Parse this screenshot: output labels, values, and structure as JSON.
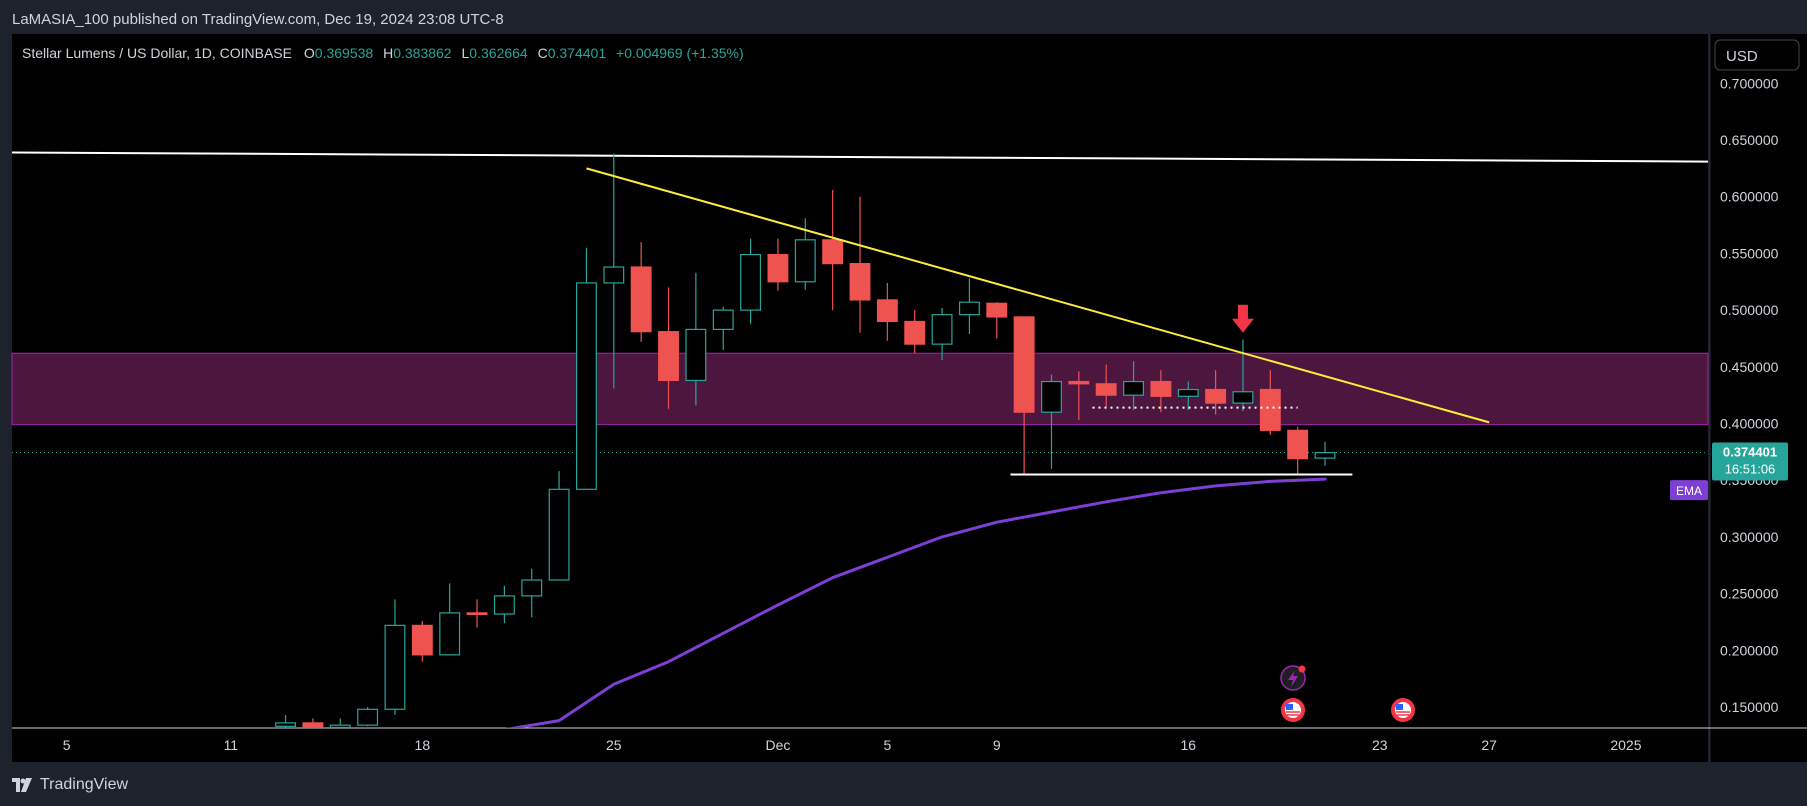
{
  "header": {
    "published": "LaMASIA_100 published on TradingView.com, Dec 19, 2024 23:08 UTC-8"
  },
  "legend": {
    "symbol": "Stellar Lumens / US Dollar, 1D, COINBASE",
    "o_label": "O",
    "o_value": "0.369538",
    "h_label": "H",
    "h_value": "0.383862",
    "l_label": "L",
    "l_value": "0.362664",
    "c_label": "C",
    "c_value": "0.374401",
    "change": "+0.004969 (+1.35%)"
  },
  "currency_button": "USD",
  "price_label": {
    "price": "0.374401",
    "countdown": "16:51:06"
  },
  "ema_label": "EMA",
  "footer": {
    "brand": "TradingView"
  },
  "colors": {
    "background": "#000000",
    "up": "#26a69a",
    "down": "#ef5350",
    "resistance_line": "#ffffff",
    "trend_line": "#ffeb3b",
    "ema": "#7e3fd6",
    "zone": "#5a1a4a",
    "dotted_line": "#26a69a"
  },
  "icons": [
    "lightning-event-icon",
    "us-flag-event-icon",
    "us-flag-event-icon",
    "tradingview-logo-icon",
    "down-arrow-icon"
  ],
  "chart_data": {
    "type": "candlestick",
    "title": "Stellar Lumens / US Dollar, 1D, COINBASE",
    "xlabel": "",
    "ylabel": "",
    "ylim": [
      0.1315,
      0.7435
    ],
    "y_ticks": [
      "0.150000",
      "0.200000",
      "0.250000",
      "0.300000",
      "0.350000",
      "0.400000",
      "0.450000",
      "0.500000",
      "0.550000",
      "0.600000",
      "0.650000",
      "0.700000"
    ],
    "y_tick_values": [
      0.15,
      0.2,
      0.25,
      0.3,
      0.35,
      0.4,
      0.45,
      0.5,
      0.55,
      0.6,
      0.65,
      0.7
    ],
    "x_ticks": [
      {
        "label": "5",
        "date": "2024-11-05"
      },
      {
        "label": "11",
        "date": "2024-11-11"
      },
      {
        "label": "18",
        "date": "2024-11-18"
      },
      {
        "label": "25",
        "date": "2024-11-25"
      },
      {
        "label": "Dec",
        "date": "2024-12-01"
      },
      {
        "label": "5",
        "date": "2024-12-05"
      },
      {
        "label": "9",
        "date": "2024-12-09"
      },
      {
        "label": "16",
        "date": "2024-12-16"
      },
      {
        "label": "23",
        "date": "2024-12-23"
      },
      {
        "label": "27",
        "date": "2024-12-27"
      },
      {
        "label": "2025",
        "date": "2025-01-01"
      }
    ],
    "x_range": [
      "2024-11-03",
      "2025-01-04"
    ],
    "candles": [
      {
        "date": "2024-11-13",
        "o": 0.133,
        "h": 0.143,
        "l": 0.13,
        "c": 0.136
      },
      {
        "date": "2024-11-14",
        "o": 0.136,
        "h": 0.14,
        "l": 0.128,
        "c": 0.132
      },
      {
        "date": "2024-11-15",
        "o": 0.132,
        "h": 0.14,
        "l": 0.129,
        "c": 0.134
      },
      {
        "date": "2024-11-16",
        "o": 0.134,
        "h": 0.15,
        "l": 0.133,
        "c": 0.148
      },
      {
        "date": "2024-11-17",
        "o": 0.148,
        "h": 0.245,
        "l": 0.143,
        "c": 0.222
      },
      {
        "date": "2024-11-18",
        "o": 0.222,
        "h": 0.226,
        "l": 0.19,
        "c": 0.196
      },
      {
        "date": "2024-11-19",
        "o": 0.196,
        "h": 0.259,
        "l": 0.196,
        "c": 0.233
      },
      {
        "date": "2024-11-20",
        "o": 0.233,
        "h": 0.245,
        "l": 0.22,
        "c": 0.232
      },
      {
        "date": "2024-11-21",
        "o": 0.232,
        "h": 0.257,
        "l": 0.224,
        "c": 0.248
      },
      {
        "date": "2024-11-22",
        "o": 0.248,
        "h": 0.272,
        "l": 0.229,
        "c": 0.262
      },
      {
        "date": "2024-11-23",
        "o": 0.262,
        "h": 0.358,
        "l": 0.262,
        "c": 0.342
      },
      {
        "date": "2024-11-24",
        "o": 0.342,
        "h": 0.555,
        "l": 0.342,
        "c": 0.524
      },
      {
        "date": "2024-11-25",
        "o": 0.524,
        "h": 0.638,
        "l": 0.431,
        "c": 0.538
      },
      {
        "date": "2024-11-26",
        "o": 0.538,
        "h": 0.56,
        "l": 0.472,
        "c": 0.481
      },
      {
        "date": "2024-11-27",
        "o": 0.481,
        "h": 0.52,
        "l": 0.413,
        "c": 0.438
      },
      {
        "date": "2024-11-28",
        "o": 0.438,
        "h": 0.533,
        "l": 0.416,
        "c": 0.483
      },
      {
        "date": "2024-11-29",
        "o": 0.483,
        "h": 0.503,
        "l": 0.465,
        "c": 0.5
      },
      {
        "date": "2024-11-30",
        "o": 0.5,
        "h": 0.563,
        "l": 0.488,
        "c": 0.549
      },
      {
        "date": "2024-12-01",
        "o": 0.549,
        "h": 0.563,
        "l": 0.517,
        "c": 0.525
      },
      {
        "date": "2024-12-02",
        "o": 0.525,
        "h": 0.581,
        "l": 0.518,
        "c": 0.562
      },
      {
        "date": "2024-12-03",
        "o": 0.562,
        "h": 0.606,
        "l": 0.5,
        "c": 0.541
      },
      {
        "date": "2024-12-04",
        "o": 0.541,
        "h": 0.6,
        "l": 0.48,
        "c": 0.509
      },
      {
        "date": "2024-12-05",
        "o": 0.509,
        "h": 0.524,
        "l": 0.473,
        "c": 0.49
      },
      {
        "date": "2024-12-06",
        "o": 0.49,
        "h": 0.5,
        "l": 0.462,
        "c": 0.47
      },
      {
        "date": "2024-12-07",
        "o": 0.47,
        "h": 0.502,
        "l": 0.456,
        "c": 0.496
      },
      {
        "date": "2024-12-08",
        "o": 0.496,
        "h": 0.528,
        "l": 0.479,
        "c": 0.507
      },
      {
        "date": "2024-12-09",
        "o": 0.506,
        "h": 0.507,
        "l": 0.475,
        "c": 0.494
      },
      {
        "date": "2024-12-10",
        "o": 0.494,
        "h": 0.494,
        "l": 0.355,
        "c": 0.41
      },
      {
        "date": "2024-12-11",
        "o": 0.41,
        "h": 0.443,
        "l": 0.36,
        "c": 0.437
      },
      {
        "date": "2024-12-12",
        "o": 0.437,
        "h": 0.446,
        "l": 0.403,
        "c": 0.435
      },
      {
        "date": "2024-12-13",
        "o": 0.435,
        "h": 0.452,
        "l": 0.415,
        "c": 0.425
      },
      {
        "date": "2024-12-14",
        "o": 0.425,
        "h": 0.455,
        "l": 0.412,
        "c": 0.437
      },
      {
        "date": "2024-12-15",
        "o": 0.437,
        "h": 0.447,
        "l": 0.41,
        "c": 0.424
      },
      {
        "date": "2024-12-16",
        "o": 0.424,
        "h": 0.437,
        "l": 0.412,
        "c": 0.43
      },
      {
        "date": "2024-12-17",
        "o": 0.43,
        "h": 0.447,
        "l": 0.408,
        "c": 0.418
      },
      {
        "date": "2024-12-18",
        "o": 0.418,
        "h": 0.474,
        "l": 0.411,
        "c": 0.428
      },
      {
        "date": "2024-12-19",
        "o": 0.43,
        "h": 0.447,
        "l": 0.39,
        "c": 0.394
      },
      {
        "date": "2024-12-20",
        "o": 0.394,
        "h": 0.397,
        "l": 0.356,
        "c": 0.369
      },
      {
        "date": "2024-12-21",
        "o": 0.369538,
        "h": 0.383862,
        "l": 0.362664,
        "c": 0.374401
      }
    ],
    "ema": [
      {
        "date": "2024-11-17",
        "v": 0.125
      },
      {
        "date": "2024-11-21",
        "v": 0.13
      },
      {
        "date": "2024-11-23",
        "v": 0.138
      },
      {
        "date": "2024-11-25",
        "v": 0.17
      },
      {
        "date": "2024-11-27",
        "v": 0.19
      },
      {
        "date": "2024-11-29",
        "v": 0.215
      },
      {
        "date": "2024-12-01",
        "v": 0.24
      },
      {
        "date": "2024-12-03",
        "v": 0.264
      },
      {
        "date": "2024-12-05",
        "v": 0.282
      },
      {
        "date": "2024-12-07",
        "v": 0.3
      },
      {
        "date": "2024-12-09",
        "v": 0.313
      },
      {
        "date": "2024-12-11",
        "v": 0.322
      },
      {
        "date": "2024-12-13",
        "v": 0.331
      },
      {
        "date": "2024-12-15",
        "v": 0.339
      },
      {
        "date": "2024-12-17",
        "v": 0.345
      },
      {
        "date": "2024-12-19",
        "v": 0.349
      },
      {
        "date": "2024-12-21",
        "v": 0.351
      }
    ],
    "drawings": {
      "resistance_line": [
        {
          "date": "2024-11-03",
          "v": 0.639
        },
        {
          "date": "2025-01-04",
          "v": 0.631
        }
      ],
      "trend_line": [
        {
          "date": "2024-11-24",
          "v": 0.625
        },
        {
          "date": "2024-12-27",
          "v": 0.401
        }
      ],
      "support_line": [
        {
          "date": "2024-12-10",
          "v": 0.355
        },
        {
          "date": "2024-12-22",
          "v": 0.355
        }
      ],
      "dotted_line": [
        {
          "date": "2024-12-13",
          "v": 0.414
        },
        {
          "date": "2024-12-20",
          "v": 0.414
        }
      ],
      "zone": {
        "from": 0.399,
        "to": 0.462
      },
      "current_price": 0.374401,
      "down_arrow": {
        "date": "2024-12-18",
        "v": 0.48
      }
    }
  }
}
